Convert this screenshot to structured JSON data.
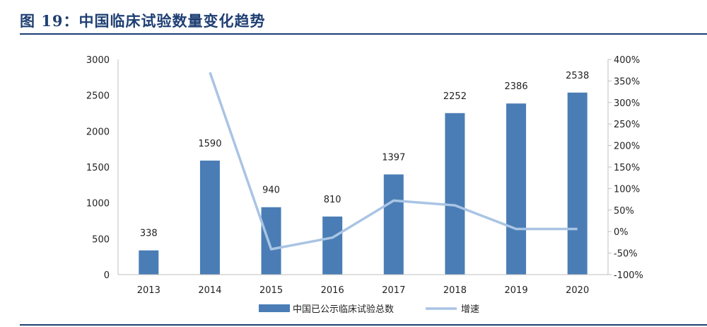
{
  "figure": {
    "title": "图 19：中国临床试验数量变化趋势"
  },
  "chart_data": {
    "type": "bar",
    "categories": [
      "2013",
      "2014",
      "2015",
      "2016",
      "2017",
      "2018",
      "2019",
      "2020"
    ],
    "series": [
      {
        "name": "中国已公示临床试验总数",
        "type": "bar",
        "axis": "left",
        "color": "#4a7db5",
        "values": [
          338,
          1590,
          940,
          810,
          1397,
          2252,
          2386,
          2538
        ]
      },
      {
        "name": "增速",
        "type": "line",
        "axis": "right",
        "color": "#a9c4e4",
        "values": [
          null,
          370,
          -41,
          -14,
          72,
          61,
          6,
          6
        ]
      }
    ],
    "y_left": {
      "min": 0,
      "max": 3000,
      "ticks": [
        "0",
        "500",
        "1000",
        "1500",
        "2000",
        "2500",
        "3000"
      ]
    },
    "y_right": {
      "min": -100,
      "max": 400,
      "ticks": [
        "-100%",
        "-50%",
        "0%",
        "50%",
        "100%",
        "150%",
        "200%",
        "250%",
        "300%",
        "350%",
        "400%"
      ]
    },
    "data_labels": [
      "338",
      "1590",
      "940",
      "810",
      "1397",
      "2252",
      "2386",
      "2538"
    ],
    "legend": {
      "position": "bottom"
    },
    "grid": false
  }
}
